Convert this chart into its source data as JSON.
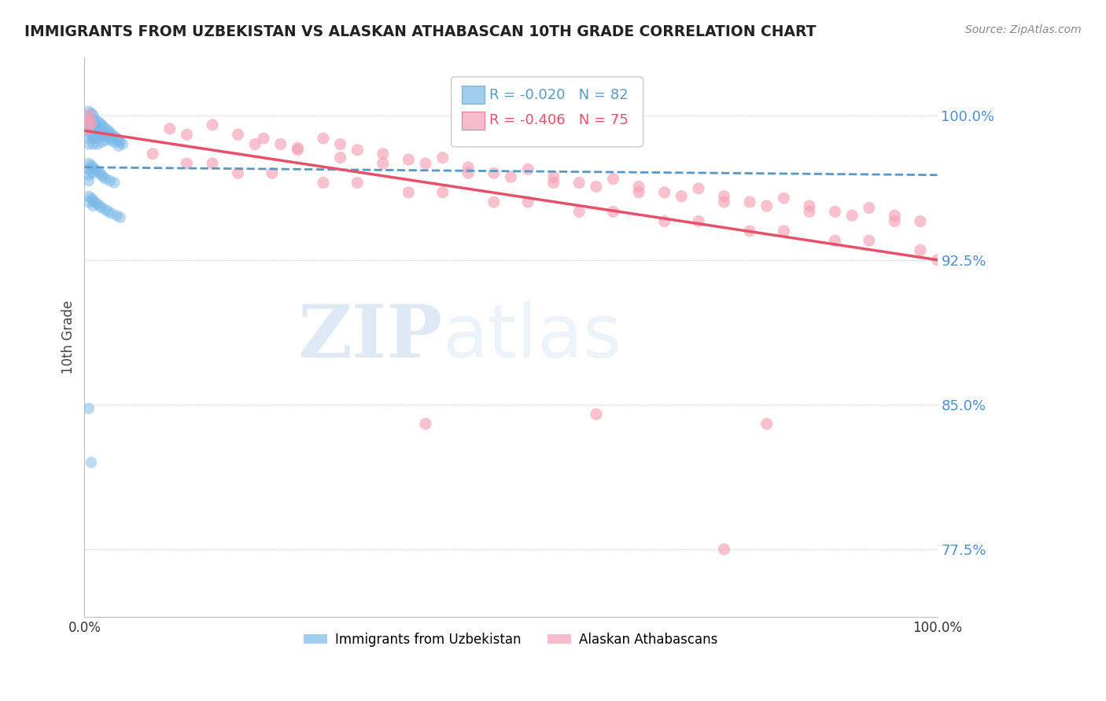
{
  "title": "IMMIGRANTS FROM UZBEKISTAN VS ALASKAN ATHABASCAN 10TH GRADE CORRELATION CHART",
  "source": "Source: ZipAtlas.com",
  "ylabel": "10th Grade",
  "xlim": [
    0.0,
    1.0
  ],
  "ylim": [
    0.74,
    1.03
  ],
  "yticks": [
    0.775,
    0.85,
    0.925,
    1.0
  ],
  "ytick_labels": [
    "77.5%",
    "85.0%",
    "92.5%",
    "100.0%"
  ],
  "xticks": [
    0.0,
    0.2,
    0.4,
    0.6,
    0.8,
    1.0
  ],
  "xtick_labels": [
    "0.0%",
    "",
    "",
    "",
    "",
    "100.0%"
  ],
  "legend": {
    "blue_r": -0.02,
    "blue_n": 82,
    "pink_r": -0.406,
    "pink_n": 75
  },
  "blue_color": "#7ab8e8",
  "pink_color": "#f5a0b5",
  "blue_line_color": "#5599cc",
  "pink_line_color": "#e8506a",
  "background_color": "#ffffff",
  "grid_color": "#cccccc",
  "watermark_1": "ZIP",
  "watermark_2": "atlas",
  "blue_scatter_x": [
    0.005,
    0.005,
    0.005,
    0.005,
    0.005,
    0.005,
    0.008,
    0.008,
    0.008,
    0.008,
    0.01,
    0.01,
    0.01,
    0.01,
    0.01,
    0.01,
    0.012,
    0.012,
    0.012,
    0.012,
    0.015,
    0.015,
    0.015,
    0.015,
    0.015,
    0.018,
    0.018,
    0.018,
    0.02,
    0.02,
    0.02,
    0.02,
    0.022,
    0.022,
    0.025,
    0.025,
    0.025,
    0.028,
    0.028,
    0.03,
    0.03,
    0.032,
    0.032,
    0.035,
    0.035,
    0.038,
    0.04,
    0.04,
    0.042,
    0.045,
    0.005,
    0.005,
    0.005,
    0.005,
    0.008,
    0.008,
    0.01,
    0.01,
    0.012,
    0.015,
    0.018,
    0.02,
    0.022,
    0.025,
    0.03,
    0.035,
    0.005,
    0.005,
    0.008,
    0.01,
    0.01,
    0.012,
    0.015,
    0.018,
    0.02,
    0.025,
    0.028,
    0.032,
    0.038,
    0.042,
    0.005,
    0.008
  ],
  "blue_scatter_y": [
    1.002,
    0.998,
    0.995,
    0.992,
    0.988,
    0.985,
    1.001,
    0.997,
    0.994,
    0.99,
    1.0,
    0.997,
    0.994,
    0.991,
    0.988,
    0.985,
    0.998,
    0.995,
    0.992,
    0.989,
    0.997,
    0.994,
    0.991,
    0.988,
    0.985,
    0.996,
    0.993,
    0.99,
    0.995,
    0.992,
    0.989,
    0.986,
    0.994,
    0.991,
    0.993,
    0.99,
    0.987,
    0.992,
    0.989,
    0.991,
    0.988,
    0.99,
    0.987,
    0.989,
    0.986,
    0.988,
    0.987,
    0.984,
    0.986,
    0.985,
    0.975,
    0.972,
    0.969,
    0.966,
    0.974,
    0.971,
    0.973,
    0.97,
    0.972,
    0.971,
    0.97,
    0.969,
    0.968,
    0.967,
    0.966,
    0.965,
    0.958,
    0.955,
    0.957,
    0.956,
    0.953,
    0.955,
    0.954,
    0.953,
    0.952,
    0.951,
    0.95,
    0.949,
    0.948,
    0.947,
    0.848,
    0.82
  ],
  "pink_scatter_x": [
    0.005,
    0.005,
    0.005,
    0.008,
    0.15,
    0.18,
    0.21,
    0.23,
    0.25,
    0.28,
    0.3,
    0.32,
    0.35,
    0.38,
    0.4,
    0.42,
    0.45,
    0.48,
    0.5,
    0.52,
    0.55,
    0.58,
    0.6,
    0.62,
    0.65,
    0.68,
    0.7,
    0.72,
    0.75,
    0.78,
    0.8,
    0.82,
    0.85,
    0.88,
    0.9,
    0.92,
    0.95,
    0.98,
    1.0,
    0.1,
    0.12,
    0.2,
    0.25,
    0.3,
    0.35,
    0.45,
    0.55,
    0.65,
    0.75,
    0.85,
    0.95,
    0.15,
    0.22,
    0.32,
    0.42,
    0.52,
    0.62,
    0.72,
    0.82,
    0.92,
    0.08,
    0.12,
    0.18,
    0.28,
    0.38,
    0.48,
    0.58,
    0.68,
    0.78,
    0.88,
    0.98,
    0.4,
    0.6,
    0.8,
    0.75
  ],
  "pink_scatter_y": [
    1.0,
    0.997,
    0.993,
    0.996,
    0.995,
    0.99,
    0.988,
    0.985,
    0.983,
    0.988,
    0.985,
    0.982,
    0.98,
    0.977,
    0.975,
    0.978,
    0.973,
    0.97,
    0.968,
    0.972,
    0.968,
    0.965,
    0.963,
    0.967,
    0.963,
    0.96,
    0.958,
    0.962,
    0.958,
    0.955,
    0.953,
    0.957,
    0.953,
    0.95,
    0.948,
    0.952,
    0.948,
    0.945,
    0.925,
    0.993,
    0.99,
    0.985,
    0.982,
    0.978,
    0.975,
    0.97,
    0.965,
    0.96,
    0.955,
    0.95,
    0.945,
    0.975,
    0.97,
    0.965,
    0.96,
    0.955,
    0.95,
    0.945,
    0.94,
    0.935,
    0.98,
    0.975,
    0.97,
    0.965,
    0.96,
    0.955,
    0.95,
    0.945,
    0.94,
    0.935,
    0.93,
    0.84,
    0.845,
    0.84,
    0.775
  ]
}
